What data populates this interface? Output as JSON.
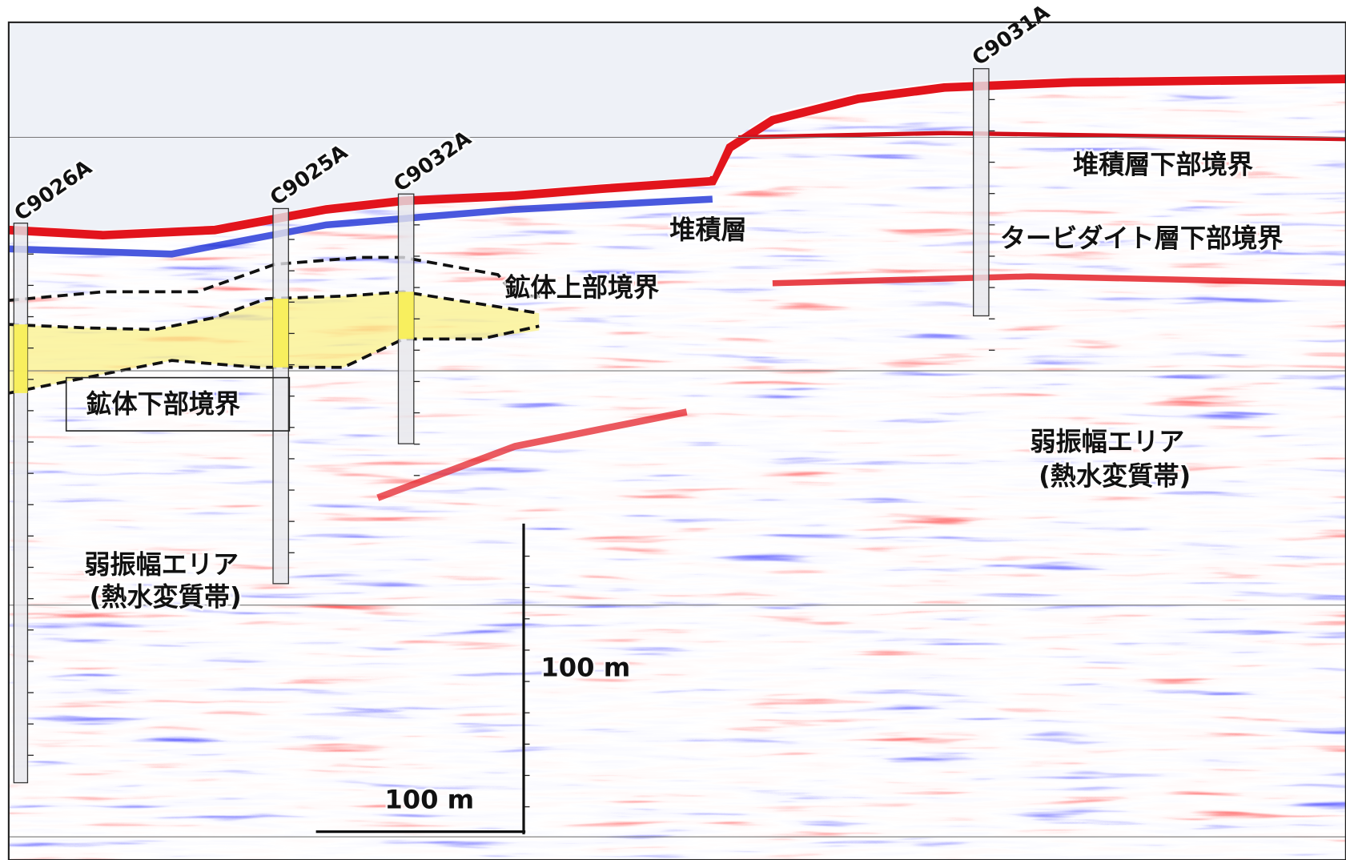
{
  "boreholes": [
    "C9026A",
    "C9025A",
    "C9032A",
    "C9031A"
  ],
  "annotations": {
    "sediment": "堆積層",
    "sediment_base": "堆積層下部境界",
    "turbidite_base": "タービダイト層下部境界",
    "ore_top": "鉱体上部境界",
    "ore_bottom": "鉱体下部境界"
  },
  "weak_zones": [
    {
      "line1": "弱振幅エリア",
      "line2": "(熱水変質帯)"
    },
    {
      "line1": "弱振幅エリア",
      "line2": "(熱水変質帯)"
    }
  ],
  "scale": {
    "vertical": "100 m",
    "horizontal": "100 m"
  }
}
